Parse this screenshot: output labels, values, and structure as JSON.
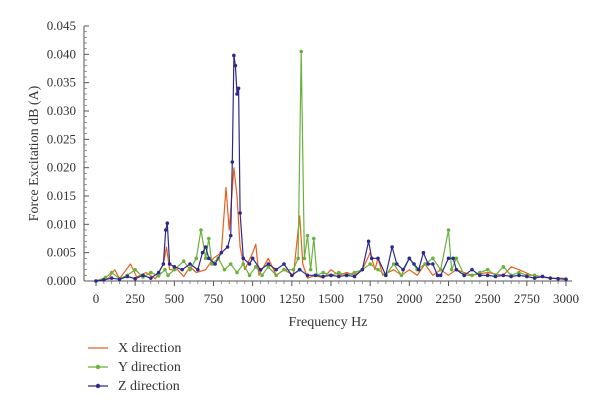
{
  "chart_data": {
    "type": "line",
    "xlabel": "Frequency Hz",
    "ylabel": "Force Excitation dB (A)",
    "xlim": [
      0,
      3000
    ],
    "ylim": [
      0,
      0.045
    ],
    "xticks": [
      "0",
      "250",
      "500",
      "750",
      "1000",
      "1250",
      "1500",
      "1750",
      "2000",
      "2250",
      "2500",
      "2750",
      "3000"
    ],
    "yticks": [
      "0.000",
      "0.005",
      "0.010",
      "0.015",
      "0.020",
      "0.025",
      "0.030",
      "0.035",
      "0.040",
      "0.045"
    ],
    "grid": false,
    "legend_position": "bottom-left",
    "series": [
      {
        "name": "X direction",
        "color": "#E8601C",
        "marker": "none",
        "points": [
          [
            0,
            0
          ],
          [
            80,
            0.0005
          ],
          [
            120,
            0.002
          ],
          [
            150,
            0.0004
          ],
          [
            220,
            0.003
          ],
          [
            260,
            0.0007
          ],
          [
            320,
            0.0015
          ],
          [
            380,
            0.0004
          ],
          [
            430,
            0.003
          ],
          [
            450,
            0.006
          ],
          [
            470,
            0.002
          ],
          [
            520,
            0.002
          ],
          [
            560,
            0.0008
          ],
          [
            600,
            0.0025
          ],
          [
            640,
            0.0015
          ],
          [
            700,
            0.002
          ],
          [
            750,
            0.004
          ],
          [
            800,
            0.005
          ],
          [
            830,
            0.0165
          ],
          [
            850,
            0.009
          ],
          [
            880,
            0.02
          ],
          [
            900,
            0.015
          ],
          [
            920,
            0.006
          ],
          [
            950,
            0.002
          ],
          [
            1000,
            0.005
          ],
          [
            1020,
            0.0065
          ],
          [
            1040,
            0.001
          ],
          [
            1100,
            0.004
          ],
          [
            1150,
            0.001
          ],
          [
            1200,
            0.002
          ],
          [
            1260,
            0.001
          ],
          [
            1300,
            0.0115
          ],
          [
            1320,
            0.003
          ],
          [
            1350,
            0.0005
          ],
          [
            1400,
            0.001
          ],
          [
            1450,
            0.0005
          ],
          [
            1500,
            0.002
          ],
          [
            1550,
            0.001
          ],
          [
            1600,
            0.0015
          ],
          [
            1650,
            0.001
          ],
          [
            1700,
            0.002
          ],
          [
            1750,
            0.005
          ],
          [
            1780,
            0.002
          ],
          [
            1800,
            0.004
          ],
          [
            1830,
            0.001
          ],
          [
            1900,
            0.002
          ],
          [
            1950,
            0.001
          ],
          [
            2000,
            0.002
          ],
          [
            2050,
            0.001
          ],
          [
            2100,
            0.003
          ],
          [
            2150,
            0.001
          ],
          [
            2200,
            0.002
          ],
          [
            2250,
            0.001
          ],
          [
            2300,
            0.002
          ],
          [
            2400,
            0.001
          ],
          [
            2500,
            0.0015
          ],
          [
            2600,
            0.001
          ],
          [
            2650,
            0.0025
          ],
          [
            2700,
            0.002
          ],
          [
            2800,
            0.0008
          ],
          [
            2900,
            0.0005
          ],
          [
            3000,
            0.0005
          ]
        ]
      },
      {
        "name": "Y direction",
        "color": "#6AB23E",
        "marker": "dot",
        "points": [
          [
            0,
            0
          ],
          [
            60,
            0.0006
          ],
          [
            100,
            0.0015
          ],
          [
            150,
            0.0004
          ],
          [
            200,
            0.001
          ],
          [
            250,
            0.002
          ],
          [
            300,
            0.0007
          ],
          [
            350,
            0.0015
          ],
          [
            400,
            0.0009
          ],
          [
            440,
            0.002
          ],
          [
            460,
            0.001
          ],
          [
            500,
            0.002
          ],
          [
            560,
            0.0035
          ],
          [
            600,
            0.002
          ],
          [
            640,
            0.004
          ],
          [
            670,
            0.009
          ],
          [
            700,
            0.004
          ],
          [
            720,
            0.0075
          ],
          [
            740,
            0.003
          ],
          [
            780,
            0.004
          ],
          [
            820,
            0.002
          ],
          [
            860,
            0.003
          ],
          [
            900,
            0.0015
          ],
          [
            940,
            0.003
          ],
          [
            980,
            0.001
          ],
          [
            1020,
            0.0025
          ],
          [
            1060,
            0.001
          ],
          [
            1100,
            0.0025
          ],
          [
            1150,
            0.001
          ],
          [
            1200,
            0.002
          ],
          [
            1260,
            0.002
          ],
          [
            1290,
            0.004
          ],
          [
            1310,
            0.0405
          ],
          [
            1330,
            0.004
          ],
          [
            1350,
            0.008
          ],
          [
            1370,
            0.002
          ],
          [
            1390,
            0.0075
          ],
          [
            1410,
            0.001
          ],
          [
            1450,
            0.0015
          ],
          [
            1500,
            0.001
          ],
          [
            1550,
            0.0015
          ],
          [
            1600,
            0.001
          ],
          [
            1650,
            0.0015
          ],
          [
            1700,
            0.002
          ],
          [
            1750,
            0.003
          ],
          [
            1800,
            0.002
          ],
          [
            1850,
            0.001
          ],
          [
            1900,
            0.003
          ],
          [
            1950,
            0.001
          ],
          [
            2000,
            0.004
          ],
          [
            2050,
            0.002
          ],
          [
            2100,
            0.003
          ],
          [
            2150,
            0.004
          ],
          [
            2200,
            0.002
          ],
          [
            2250,
            0.009
          ],
          [
            2270,
            0.002
          ],
          [
            2300,
            0.004
          ],
          [
            2350,
            0.001
          ],
          [
            2400,
            0.001
          ],
          [
            2450,
            0.0015
          ],
          [
            2500,
            0.002
          ],
          [
            2550,
            0.001
          ],
          [
            2600,
            0.0025
          ],
          [
            2650,
            0.001
          ],
          [
            2700,
            0.0015
          ],
          [
            2750,
            0.001
          ],
          [
            2800,
            0.001
          ],
          [
            2900,
            0.0005
          ],
          [
            3000,
            0.0003
          ]
        ]
      },
      {
        "name": "Z direction",
        "color": "#2E2A8C",
        "marker": "dot",
        "points": [
          [
            0,
            0
          ],
          [
            50,
            0.0002
          ],
          [
            100,
            0.0005
          ],
          [
            150,
            0.0003
          ],
          [
            200,
            0.0008
          ],
          [
            250,
            0.0004
          ],
          [
            300,
            0.001
          ],
          [
            350,
            0.0005
          ],
          [
            400,
            0.0015
          ],
          [
            430,
            0.003
          ],
          [
            445,
            0.009
          ],
          [
            455,
            0.0102
          ],
          [
            470,
            0.003
          ],
          [
            500,
            0.0025
          ],
          [
            550,
            0.002
          ],
          [
            600,
            0.003
          ],
          [
            650,
            0.002
          ],
          [
            680,
            0.005
          ],
          [
            700,
            0.006
          ],
          [
            720,
            0.004
          ],
          [
            760,
            0.003
          ],
          [
            800,
            0.005
          ],
          [
            840,
            0.006
          ],
          [
            860,
            0.008
          ],
          [
            870,
            0.021
          ],
          [
            880,
            0.0398
          ],
          [
            890,
            0.038
          ],
          [
            900,
            0.033
          ],
          [
            910,
            0.034
          ],
          [
            920,
            0.012
          ],
          [
            940,
            0.004
          ],
          [
            980,
            0.003
          ],
          [
            1000,
            0.004
          ],
          [
            1050,
            0.002
          ],
          [
            1100,
            0.003
          ],
          [
            1150,
            0.002
          ],
          [
            1200,
            0.003
          ],
          [
            1250,
            0.001
          ],
          [
            1300,
            0.002
          ],
          [
            1350,
            0.001
          ],
          [
            1400,
            0.001
          ],
          [
            1450,
            0.0008
          ],
          [
            1500,
            0.001
          ],
          [
            1550,
            0.0008
          ],
          [
            1600,
            0.001
          ],
          [
            1650,
            0.0008
          ],
          [
            1700,
            0.002
          ],
          [
            1740,
            0.007
          ],
          [
            1760,
            0.004
          ],
          [
            1800,
            0.004
          ],
          [
            1850,
            0.001
          ],
          [
            1890,
            0.006
          ],
          [
            1920,
            0.003
          ],
          [
            1960,
            0.002
          ],
          [
            2000,
            0.004
          ],
          [
            2030,
            0.003
          ],
          [
            2060,
            0.002
          ],
          [
            2090,
            0.005
          ],
          [
            2120,
            0.003
          ],
          [
            2150,
            0.003
          ],
          [
            2180,
            0.001
          ],
          [
            2200,
            0.001
          ],
          [
            2250,
            0.004
          ],
          [
            2280,
            0.004
          ],
          [
            2300,
            0.002
          ],
          [
            2350,
            0.001
          ],
          [
            2400,
            0.002
          ],
          [
            2450,
            0.001
          ],
          [
            2500,
            0.001
          ],
          [
            2550,
            0.0008
          ],
          [
            2600,
            0.001
          ],
          [
            2650,
            0.0008
          ],
          [
            2700,
            0.001
          ],
          [
            2750,
            0.0008
          ],
          [
            2800,
            0.0005
          ],
          [
            2850,
            0.0008
          ],
          [
            2900,
            0.0005
          ],
          [
            2950,
            0.0004
          ],
          [
            3000,
            0.0003
          ]
        ]
      }
    ]
  }
}
